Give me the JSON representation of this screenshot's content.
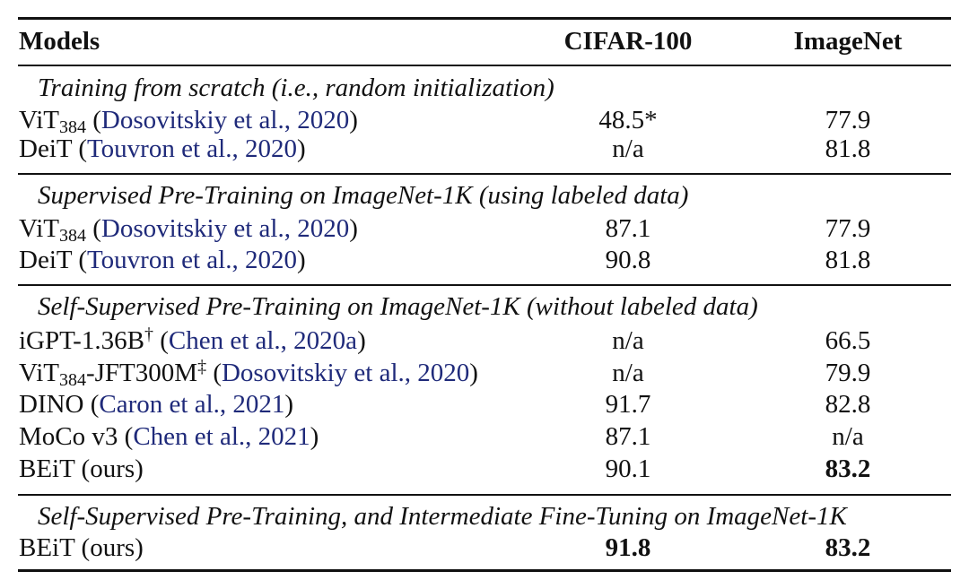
{
  "header": {
    "models": "Models",
    "cifar": "CIFAR-100",
    "imagenet": "ImageNet"
  },
  "sections": [
    {
      "title": "Training from scratch (i.e., random initialization)",
      "rows": [
        {
          "name": "ViT",
          "sub": "384",
          "sup": "",
          "suffix": "",
          "cite": "Dosovitskiy et al., 2020",
          "cifar": "48.5*",
          "imagenet": "77.9"
        },
        {
          "name": "DeiT",
          "sub": "",
          "sup": "",
          "suffix": "",
          "cite": "Touvron et al., 2020",
          "cifar": "n/a",
          "imagenet": "81.8"
        }
      ]
    },
    {
      "title": "Supervised Pre-Training on ImageNet-1K (using labeled data)",
      "rows": [
        {
          "name": "ViT",
          "sub": "384",
          "sup": "",
          "suffix": "",
          "cite": "Dosovitskiy et al., 2020",
          "cifar": "87.1",
          "imagenet": "77.9"
        },
        {
          "name": "DeiT",
          "sub": "",
          "sup": "",
          "suffix": "",
          "cite": "Touvron et al., 2020",
          "cifar": "90.8",
          "imagenet": "81.8"
        }
      ]
    },
    {
      "title": "Self-Supervised Pre-Training on ImageNet-1K (without labeled data)",
      "rows": [
        {
          "name": "iGPT-1.36B",
          "sub": "",
          "sup": "†",
          "suffix": "",
          "cite": "Chen et al., 2020a",
          "cifar": "n/a",
          "imagenet": "66.5"
        },
        {
          "name": "ViT",
          "sub": "384",
          "sup": "‡",
          "suffix": "-JFT300M",
          "cite": "Dosovitskiy et al., 2020",
          "cifar": "n/a",
          "imagenet": "79.9"
        },
        {
          "name": "DINO",
          "sub": "",
          "sup": "",
          "suffix": "",
          "cite": "Caron et al., 2021",
          "cifar": "91.7",
          "imagenet": "82.8"
        },
        {
          "name": "MoCo v3",
          "sub": "",
          "sup": "",
          "suffix": "",
          "cite": "Chen et al., 2021",
          "cifar": "87.1",
          "imagenet": "n/a"
        },
        {
          "name": "BEiT (ours)",
          "sub": "",
          "sup": "",
          "suffix": "",
          "cite": "",
          "cifar": "90.1",
          "imagenet": "83.2",
          "imagenet_bold": true
        }
      ]
    },
    {
      "title": "Self-Supervised Pre-Training, and Intermediate Fine-Tuning on ImageNet-1K",
      "rows": [
        {
          "name": "BEiT (ours)",
          "sub": "",
          "sup": "",
          "suffix": "",
          "cite": "",
          "cifar": "91.8",
          "imagenet": "83.2",
          "cifar_bold": true,
          "imagenet_bold": true
        }
      ]
    }
  ],
  "colors": {
    "text": "#111111",
    "citation": "#1f2a7a",
    "background": "#ffffff"
  }
}
